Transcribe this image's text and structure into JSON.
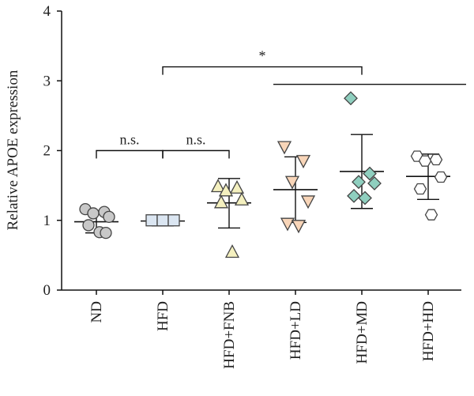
{
  "chart_data": {
    "type": "scatter",
    "ylabel": "Relative APOE expression",
    "xlabel": "",
    "ylim": [
      0,
      4
    ],
    "yticks": [
      "0",
      "1",
      "2",
      "3",
      "4"
    ],
    "categories": [
      "ND",
      "HFD",
      "HFD+FNB",
      "HFD+LD",
      "HFD+MD",
      "HFD+HD"
    ],
    "groups": [
      {
        "name": "ND",
        "marker": "circle",
        "fill": "#c8c8c8",
        "points": [
          1.16,
          1.12,
          1.1,
          1.05,
          0.93,
          0.83,
          0.82
        ],
        "mean": 0.98,
        "sd_low": 0.82,
        "sd_high": 1.14
      },
      {
        "name": "HFD",
        "marker": "square",
        "fill": "#dbe6f2",
        "points": [
          1.0,
          1.0,
          1.0
        ],
        "mean": 0.99,
        "sd_low": 0.92,
        "sd_high": 1.06
      },
      {
        "name": "HFD+FNB",
        "marker": "triangle-up",
        "fill": "#f4f0bf",
        "points": [
          1.49,
          1.47,
          1.43,
          1.3,
          1.26,
          0.55
        ],
        "mean": 1.25,
        "sd_low": 0.89,
        "sd_high": 1.6
      },
      {
        "name": "HFD+LD",
        "marker": "triangle-down",
        "fill": "#f8d5b8",
        "points": [
          2.05,
          1.85,
          1.55,
          1.27,
          0.95,
          0.92
        ],
        "mean": 1.44,
        "sd_low": 0.97,
        "sd_high": 1.91
      },
      {
        "name": "HFD+MD",
        "marker": "diamond",
        "fill": "#8fcfbf",
        "points": [
          2.75,
          1.67,
          1.55,
          1.53,
          1.35,
          1.32
        ],
        "mean": 1.7,
        "sd_low": 1.17,
        "sd_high": 2.23
      },
      {
        "name": "HFD+HD",
        "marker": "hexagon",
        "fill": "#ffffff",
        "points": [
          1.92,
          1.87,
          1.85,
          1.62,
          1.45,
          1.08
        ],
        "mean": 1.63,
        "sd_low": 1.3,
        "sd_high": 1.95
      }
    ],
    "annotations": [
      {
        "label": "n.s.",
        "from": "ND",
        "to": "HFD"
      },
      {
        "label": "n.s.",
        "from": "HFD",
        "to": "HFD+FNB"
      },
      {
        "label": "*",
        "from": "HFD",
        "to": "HFD+MD"
      },
      {
        "label": "",
        "from": "HFD+LD",
        "to": "HFD+HD"
      }
    ],
    "grid": false,
    "legend": "none"
  }
}
